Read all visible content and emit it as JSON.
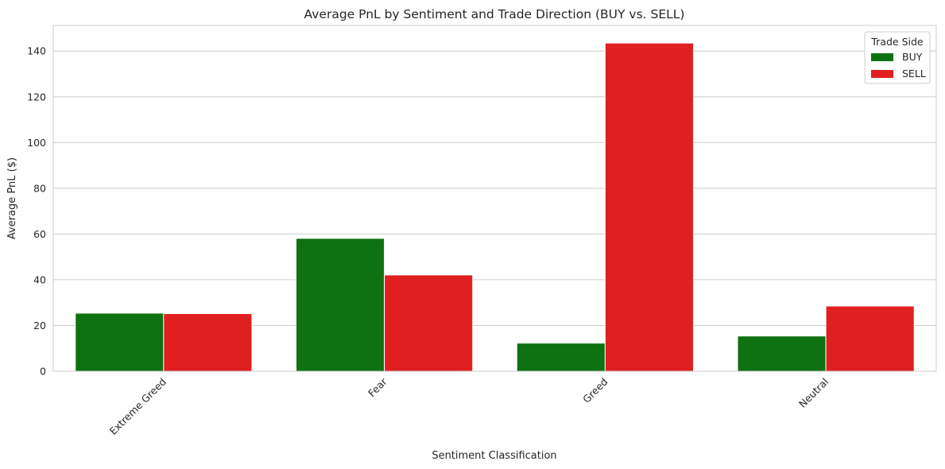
{
  "chart_data": {
    "type": "bar",
    "title": "Average PnL by Sentiment and Trade Direction (BUY vs. SELL)",
    "xlabel": "Sentiment Classification",
    "ylabel": "Average PnL ($)",
    "categories": [
      "Extreme Greed",
      "Fear",
      "Greed",
      "Neutral"
    ],
    "series": [
      {
        "name": "BUY",
        "color": "#0e7212",
        "values": [
          25.4,
          58.1,
          12.3,
          15.4
        ]
      },
      {
        "name": "SELL",
        "color": "#e01f20",
        "values": [
          25.2,
          42.1,
          143.5,
          28.5
        ]
      }
    ],
    "ylim": [
      0,
      151.2
    ],
    "yticks": [
      0,
      20,
      40,
      60,
      80,
      100,
      120,
      140
    ],
    "grid": true,
    "legend": {
      "title": "Trade Side",
      "placement": "top-right"
    }
  }
}
